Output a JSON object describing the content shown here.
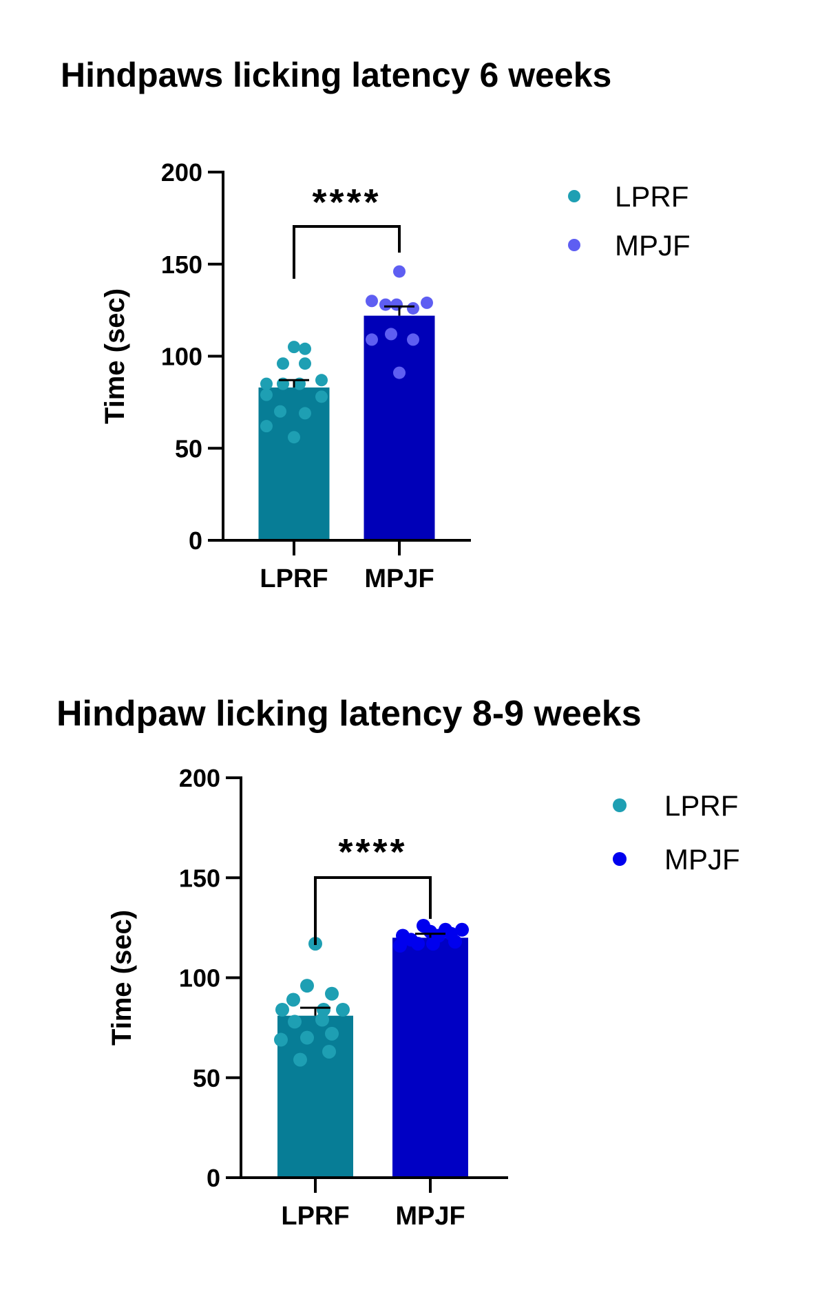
{
  "chart_data": [
    {
      "type": "bar",
      "title": "Hindpaws licking latency 6 weeks",
      "xlabel": "",
      "ylabel": "Time (sec)",
      "ylim": [
        0,
        200
      ],
      "yticks": [
        0,
        50,
        100,
        150,
        200
      ],
      "ytick_labels": [
        "0",
        "50",
        "100",
        "150",
        "200"
      ],
      "categories": [
        "LPRF",
        "MPJF"
      ],
      "values": [
        83,
        122
      ],
      "sem": [
        4,
        5
      ],
      "bar_colors": [
        "#077d96",
        "#0000b8"
      ],
      "points": [
        [
          105,
          104,
          96,
          96,
          85,
          85,
          85,
          87,
          79,
          78,
          70,
          69,
          62,
          56
        ],
        [
          146,
          130,
          128,
          128,
          129,
          126,
          112,
          109,
          109,
          91
        ]
      ],
      "point_colors": [
        "#1e9fb3",
        "#5e5ef2"
      ],
      "significance": "****",
      "legend": [
        {
          "label": "LPRF",
          "color": "#1e9fb3"
        },
        {
          "label": "MPJF",
          "color": "#5e5ef2"
        }
      ],
      "legend_position": "right"
    },
    {
      "type": "bar",
      "title": "Hindpaw licking latency 8-9 weeks",
      "xlabel": "",
      "ylabel": "Time (sec)",
      "ylim": [
        0,
        200
      ],
      "yticks": [
        0,
        50,
        100,
        150,
        200
      ],
      "ytick_labels": [
        "0",
        "50",
        "100",
        "150",
        "200"
      ],
      "categories": [
        "LPRF",
        "MPJF"
      ],
      "values": [
        81,
        120
      ],
      "sem": [
        4,
        2
      ],
      "bar_colors": [
        "#077d96",
        "#0000c4"
      ],
      "points": [
        [
          117,
          96,
          92,
          89,
          84,
          84,
          84,
          79,
          78,
          72,
          70,
          69,
          63,
          59
        ],
        [
          126,
          124,
          124,
          123,
          122,
          121,
          121,
          119,
          118,
          117,
          117,
          116
        ]
      ],
      "point_colors": [
        "#1e9fb3",
        "#0000ee"
      ],
      "significance": "****",
      "legend": [
        {
          "label": "LPRF",
          "color": "#1e9fb3"
        },
        {
          "label": "MPJF",
          "color": "#0000ee"
        }
      ],
      "legend_position": "right"
    }
  ]
}
